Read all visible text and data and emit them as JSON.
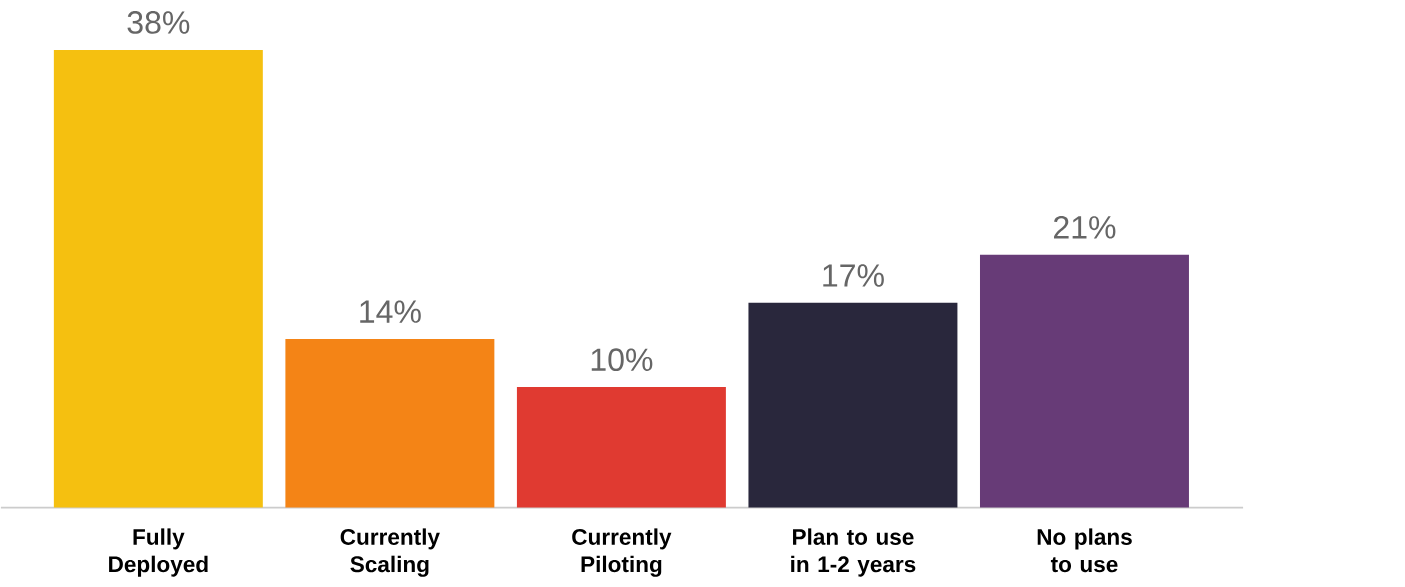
{
  "chart_data": {
    "type": "bar",
    "categories": [
      "Fully Deployed",
      "Currently Scaling",
      "Currently Piloting",
      "Plan to use in 1-2 years",
      "No plans to use"
    ],
    "values": [
      38,
      14,
      10,
      17,
      21
    ],
    "colors": [
      "#f5c010",
      "#f48416",
      "#e03a31",
      "#29273c",
      "#673b77"
    ],
    "value_labels": [
      "38%",
      "14%",
      "10%",
      "17%",
      "21%"
    ]
  }
}
